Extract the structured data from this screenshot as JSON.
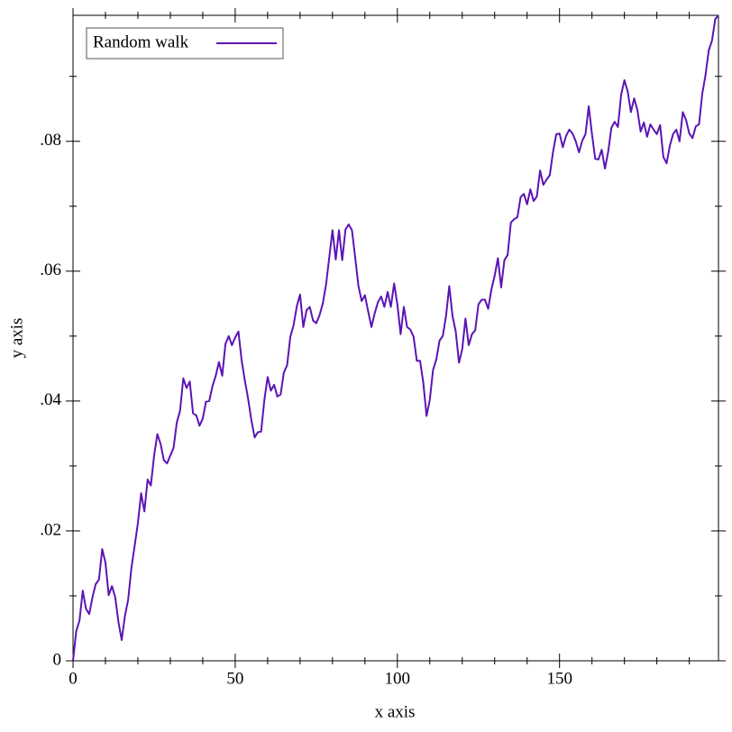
{
  "chart_data": {
    "type": "line",
    "xlabel": "x axis",
    "ylabel": "y axis",
    "x": [
      0,
      1,
      2,
      3,
      4,
      5,
      6,
      7,
      8,
      9,
      10,
      11,
      12,
      13,
      14,
      15,
      16,
      17,
      18,
      19,
      20,
      21,
      22,
      23,
      24,
      25,
      26,
      27,
      28,
      29,
      30,
      31,
      32,
      33,
      34,
      35,
      36,
      37,
      38,
      39,
      40,
      41,
      42,
      43,
      44,
      45,
      46,
      47,
      48,
      49,
      50,
      51,
      52,
      53,
      54,
      55,
      56,
      57,
      58,
      59,
      60,
      61,
      62,
      63,
      64,
      65,
      66,
      67,
      68,
      69,
      70,
      71,
      72,
      73,
      74,
      75,
      76,
      77,
      78,
      79,
      80,
      81,
      82,
      83,
      84,
      85,
      86,
      87,
      88,
      89,
      90,
      91,
      92,
      93,
      94,
      95,
      96,
      97,
      98,
      99,
      100,
      101,
      102,
      103,
      104,
      105,
      106,
      107,
      108,
      109,
      110,
      111,
      112,
      113,
      114,
      115,
      116,
      117,
      118,
      119,
      120,
      121,
      122,
      123,
      124,
      125,
      126,
      127,
      128,
      129,
      130,
      131,
      132,
      133,
      134,
      135,
      136,
      137,
      138,
      139,
      140,
      141,
      142,
      143,
      144,
      145,
      146,
      147,
      148,
      149,
      150,
      151,
      152,
      153,
      154,
      155,
      156,
      157,
      158,
      159,
      160,
      161,
      162,
      163,
      164,
      165,
      166,
      167,
      168,
      169,
      170,
      171,
      172,
      173,
      174,
      175,
      176,
      177,
      178,
      179,
      180,
      181,
      182,
      183,
      184,
      185,
      186,
      187,
      188,
      189,
      190,
      191,
      192,
      193,
      194,
      195,
      196,
      197,
      198,
      199
    ],
    "series": [
      {
        "name": "Random walk",
        "color": "#5c14b4",
        "values": [
          0,
          0.0046,
          0.0062,
          0.0108,
          0.008,
          0.0072,
          0.0098,
          0.0118,
          0.0125,
          0.0172,
          0.0151,
          0.0101,
          0.0115,
          0.0098,
          0.006,
          0.0032,
          0.0069,
          0.0094,
          0.0143,
          0.0177,
          0.0212,
          0.0258,
          0.023,
          0.0279,
          0.027,
          0.0316,
          0.0349,
          0.0334,
          0.0309,
          0.0304,
          0.0316,
          0.0328,
          0.0367,
          0.0385,
          0.0435,
          0.042,
          0.043,
          0.0381,
          0.0378,
          0.0362,
          0.0373,
          0.0399,
          0.04,
          0.0423,
          0.0439,
          0.046,
          0.0439,
          0.0488,
          0.05,
          0.0486,
          0.0498,
          0.0507,
          0.0462,
          0.0431,
          0.0403,
          0.037,
          0.0344,
          0.0352,
          0.0353,
          0.0402,
          0.0437,
          0.0416,
          0.0425,
          0.0407,
          0.041,
          0.0444,
          0.0455,
          0.0499,
          0.0517,
          0.0546,
          0.0564,
          0.0514,
          0.054,
          0.0545,
          0.0524,
          0.052,
          0.0532,
          0.055,
          0.0579,
          0.0621,
          0.0663,
          0.0618,
          0.0663,
          0.0617,
          0.0664,
          0.0672,
          0.0663,
          0.0621,
          0.0577,
          0.0554,
          0.0563,
          0.0538,
          0.0514,
          0.0535,
          0.0552,
          0.0561,
          0.0545,
          0.0568,
          0.0545,
          0.0581,
          0.0549,
          0.0503,
          0.0545,
          0.0514,
          0.051,
          0.0499,
          0.0462,
          0.0462,
          0.0428,
          0.0377,
          0.0402,
          0.0448,
          0.0464,
          0.0493,
          0.05,
          0.0531,
          0.0577,
          0.0531,
          0.0507,
          0.0459,
          0.048,
          0.0527,
          0.0486,
          0.0503,
          0.0509,
          0.0549,
          0.0556,
          0.0556,
          0.0542,
          0.0572,
          0.0593,
          0.062,
          0.0575,
          0.0617,
          0.0625,
          0.0675,
          0.068,
          0.0683,
          0.0714,
          0.0719,
          0.0703,
          0.0726,
          0.0708,
          0.0715,
          0.0755,
          0.0733,
          0.0741,
          0.0748,
          0.0784,
          0.0811,
          0.0812,
          0.0791,
          0.0808,
          0.0818,
          0.0812,
          0.08,
          0.0783,
          0.0801,
          0.0811,
          0.0854,
          0.0811,
          0.0773,
          0.0772,
          0.0787,
          0.0758,
          0.0784,
          0.0821,
          0.083,
          0.0822,
          0.0872,
          0.0894,
          0.0877,
          0.0845,
          0.0866,
          0.0848,
          0.0815,
          0.0829,
          0.0807,
          0.0826,
          0.0818,
          0.0811,
          0.0825,
          0.0776,
          0.0766,
          0.0793,
          0.0811,
          0.0818,
          0.08,
          0.0845,
          0.0833,
          0.0812,
          0.0805,
          0.0823,
          0.0826,
          0.0873,
          0.0902,
          0.094,
          0.0955,
          0.0988,
          0.0994
        ]
      }
    ],
    "xlim": [
      0,
      199
    ],
    "ylim": [
      0,
      0.0994
    ],
    "xticks": [
      0,
      50,
      100,
      150
    ],
    "yticks": [
      0,
      {
        "value": 0.02,
        "label": ".02"
      },
      {
        "value": 0.04,
        "label": ".04"
      },
      {
        "value": 0.06,
        "label": ".06"
      },
      {
        "value": 0.08,
        "label": ".08"
      }
    ],
    "xminorticks": [
      10,
      20,
      30,
      40,
      60,
      70,
      80,
      90,
      110,
      120,
      130,
      140,
      160,
      170,
      180,
      190
    ],
    "yminorticks": [
      0.01,
      0.03,
      0.05,
      0.07,
      0.09
    ],
    "legend": "top-left",
    "grid": false
  }
}
